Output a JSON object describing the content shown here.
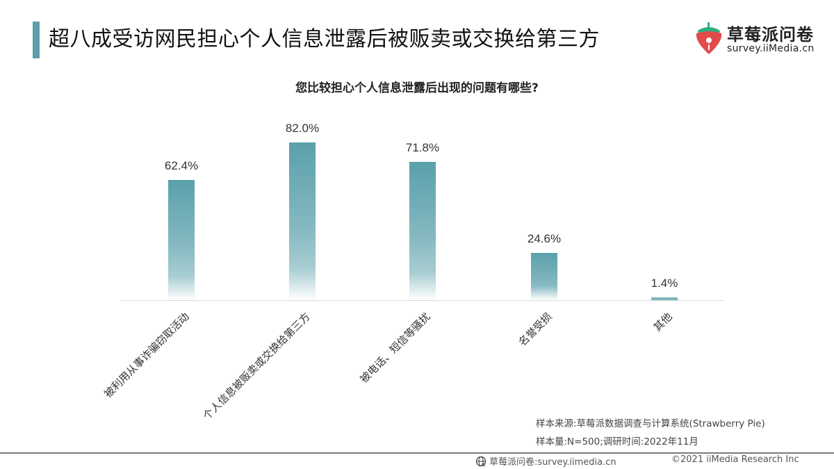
{
  "header": {
    "title": "超八成受访网民担心个人信息泄露后被贩卖或交换给第三方",
    "accent_color": "#5c9ea9"
  },
  "logo": {
    "name": "草莓派问卷",
    "url": "survey.iiMedia.cn",
    "icon": "strawberry-icon"
  },
  "chart_data": {
    "type": "bar",
    "title": "您比较担心个人信息泄露后出现的问题有哪些?",
    "categories": [
      "被利用从事诈骗窃取活动",
      "个人信息被贩卖或交换给第三方",
      "被电话、短信等骚扰",
      "名誉受损",
      "其他"
    ],
    "values": [
      62.4,
      82.0,
      71.8,
      24.6,
      1.4
    ],
    "value_labels": [
      "62.4%",
      "82.0%",
      "71.8%",
      "24.6%",
      "1.4%"
    ],
    "unit": "%",
    "xlabel": "",
    "ylabel": "",
    "ylim": [
      0,
      100
    ],
    "grid": false,
    "legend": null,
    "bar_color": "#5aa0ab",
    "x_tick_rotation": -45
  },
  "notes": {
    "source": "样本来源:草莓派数据调查与计算系统(Strawberry Pie)",
    "sample": "样本量:N=500;调研时间:2022年11月"
  },
  "footer": {
    "site": "草莓派问卷:survey.iimedia.cn",
    "copyright": "©2021  iiMedia Research  Inc",
    "icon": "globe-icon"
  }
}
